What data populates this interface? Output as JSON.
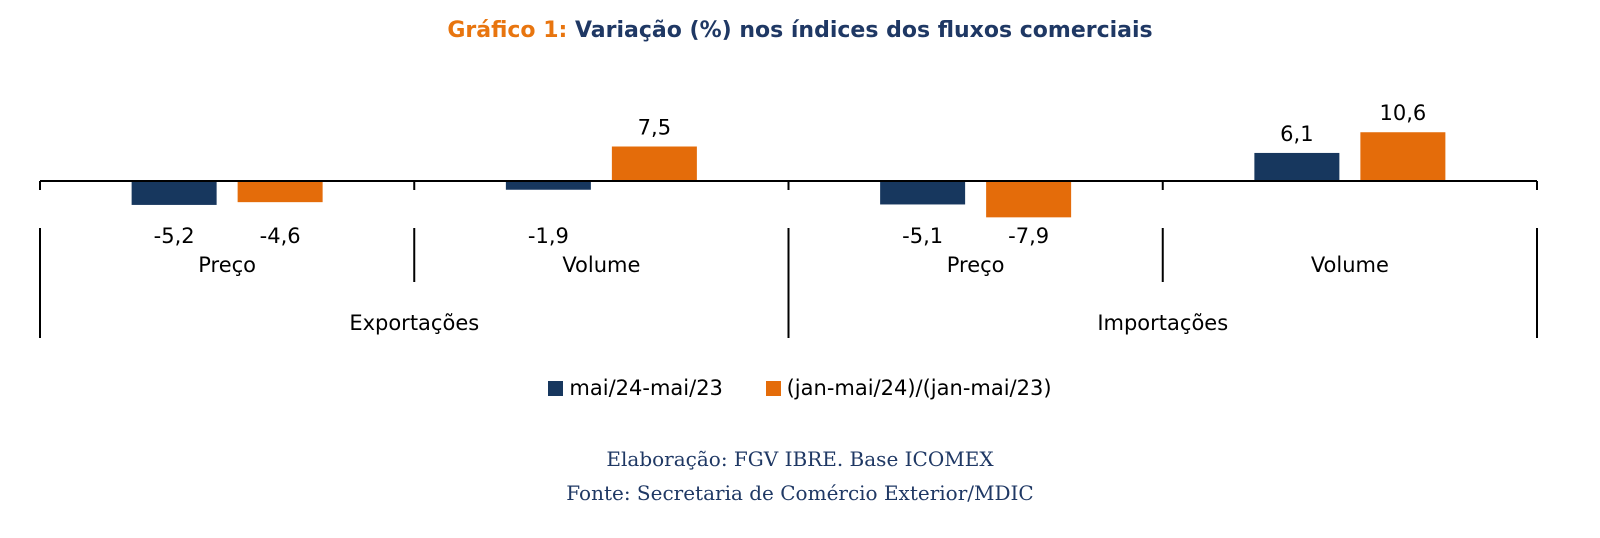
{
  "chart_data": {
    "type": "bar",
    "title_prefix": "Gráfico 1:",
    "title": "Variação (%) nos índices dos fluxos comerciais",
    "groups": [
      {
        "label": "Exportações",
        "categories": [
          "Preço",
          "Volume"
        ]
      },
      {
        "label": "Importações",
        "categories": [
          "Preço",
          "Volume"
        ]
      }
    ],
    "categories": [
      "Preço",
      "Volume",
      "Preço",
      "Volume"
    ],
    "series": [
      {
        "name": "mai/24-mai/23",
        "color": "#17375e",
        "values": [
          -5.2,
          -1.9,
          -5.1,
          6.1
        ],
        "labels": [
          "-5,2",
          "-1,9",
          "-5,1",
          "6,1"
        ]
      },
      {
        "name": "(jan-mai/24)/(jan-mai/23)",
        "color": "#e46c0a",
        "values": [
          -4.6,
          7.5,
          -7.9,
          10.6
        ],
        "labels": [
          "-4,6",
          "7,5",
          "-7,9",
          "10,6"
        ]
      }
    ],
    "legend_position": "bottom",
    "grid": false
  },
  "source": {
    "line1": "Elaboração: FGV IBRE. Base ICOMEX",
    "line2": "Fonte: Secretaria de Comércio Exterior/MDIC"
  }
}
